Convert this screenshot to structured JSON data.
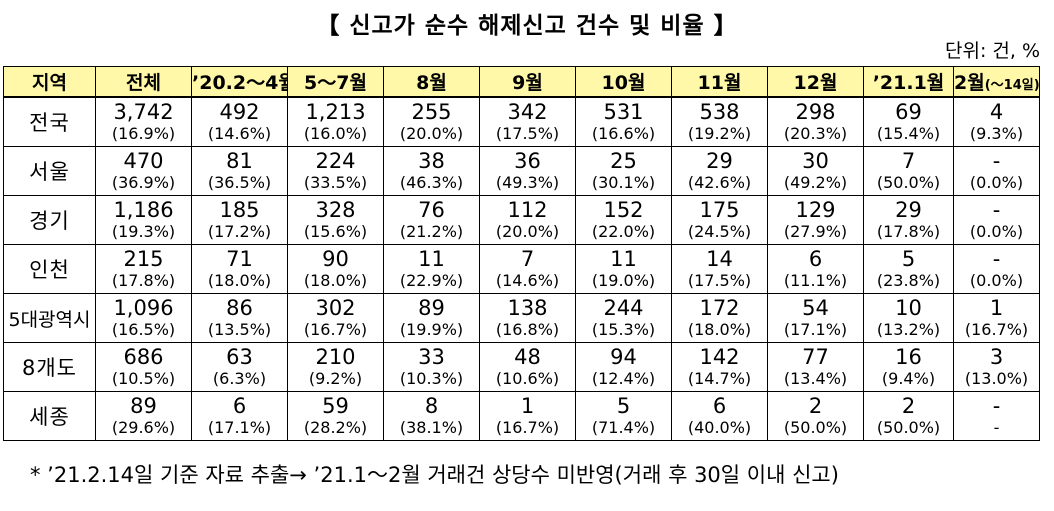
{
  "title": "【 신고가 순수 해제신고 건수 및 비율 】",
  "unit_label": "단위: 건, %",
  "columns": {
    "region": "지역",
    "total": "전체",
    "c1": "’20.2～4월",
    "c2": "5～7월",
    "c3": "8월",
    "c4": "9월",
    "c5": "10월",
    "c6": "11월",
    "c7": "12월",
    "c8": "’21.1월",
    "c9_main": "2월",
    "c9_note": "(～14일)"
  },
  "rows": [
    {
      "region": "전국",
      "cells": [
        {
          "count": "3,742",
          "pct": "(16.9%)"
        },
        {
          "count": "492",
          "pct": "(14.6%)"
        },
        {
          "count": "1,213",
          "pct": "(16.0%)"
        },
        {
          "count": "255",
          "pct": "(20.0%)"
        },
        {
          "count": "342",
          "pct": "(17.5%)"
        },
        {
          "count": "531",
          "pct": "(16.6%)"
        },
        {
          "count": "538",
          "pct": "(19.2%)"
        },
        {
          "count": "298",
          "pct": "(20.3%)"
        },
        {
          "count": "69",
          "pct": "(15.4%)"
        },
        {
          "count": "4",
          "pct": "(9.3%)"
        }
      ]
    },
    {
      "region": "서울",
      "cells": [
        {
          "count": "470",
          "pct": "(36.9%)"
        },
        {
          "count": "81",
          "pct": "(36.5%)"
        },
        {
          "count": "224",
          "pct": "(33.5%)"
        },
        {
          "count": "38",
          "pct": "(46.3%)"
        },
        {
          "count": "36",
          "pct": "(49.3%)"
        },
        {
          "count": "25",
          "pct": "(30.1%)"
        },
        {
          "count": "29",
          "pct": "(42.6%)"
        },
        {
          "count": "30",
          "pct": "(49.2%)"
        },
        {
          "count": "7",
          "pct": "(50.0%)"
        },
        {
          "count": "-",
          "pct": "(0.0%)"
        }
      ]
    },
    {
      "region": "경기",
      "cells": [
        {
          "count": "1,186",
          "pct": "(19.3%)"
        },
        {
          "count": "185",
          "pct": "(17.2%)"
        },
        {
          "count": "328",
          "pct": "(15.6%)"
        },
        {
          "count": "76",
          "pct": "(21.2%)"
        },
        {
          "count": "112",
          "pct": "(20.0%)"
        },
        {
          "count": "152",
          "pct": "(22.0%)"
        },
        {
          "count": "175",
          "pct": "(24.5%)"
        },
        {
          "count": "129",
          "pct": "(27.9%)"
        },
        {
          "count": "29",
          "pct": "(17.8%)"
        },
        {
          "count": "-",
          "pct": "(0.0%)"
        }
      ]
    },
    {
      "region": "인천",
      "cells": [
        {
          "count": "215",
          "pct": "(17.8%)"
        },
        {
          "count": "71",
          "pct": "(18.0%)"
        },
        {
          "count": "90",
          "pct": "(18.0%)"
        },
        {
          "count": "11",
          "pct": "(22.9%)"
        },
        {
          "count": "7",
          "pct": "(14.6%)"
        },
        {
          "count": "11",
          "pct": "(19.0%)"
        },
        {
          "count": "14",
          "pct": "(17.5%)"
        },
        {
          "count": "6",
          "pct": "(11.1%)"
        },
        {
          "count": "5",
          "pct": "(23.8%)"
        },
        {
          "count": "-",
          "pct": "(0.0%)"
        }
      ]
    },
    {
      "region": "5대광역시",
      "cells": [
        {
          "count": "1,096",
          "pct": "(16.5%)"
        },
        {
          "count": "86",
          "pct": "(13.5%)"
        },
        {
          "count": "302",
          "pct": "(16.7%)"
        },
        {
          "count": "89",
          "pct": "(19.9%)"
        },
        {
          "count": "138",
          "pct": "(16.8%)"
        },
        {
          "count": "244",
          "pct": "(15.3%)"
        },
        {
          "count": "172",
          "pct": "(18.0%)"
        },
        {
          "count": "54",
          "pct": "(17.1%)"
        },
        {
          "count": "10",
          "pct": "(13.2%)"
        },
        {
          "count": "1",
          "pct": "(16.7%)"
        }
      ]
    },
    {
      "region": "8개도",
      "cells": [
        {
          "count": "686",
          "pct": "(10.5%)"
        },
        {
          "count": "63",
          "pct": "(6.3%)"
        },
        {
          "count": "210",
          "pct": "(9.2%)"
        },
        {
          "count": "33",
          "pct": "(10.3%)"
        },
        {
          "count": "48",
          "pct": "(10.6%)"
        },
        {
          "count": "94",
          "pct": "(12.4%)"
        },
        {
          "count": "142",
          "pct": "(14.7%)"
        },
        {
          "count": "77",
          "pct": "(13.4%)"
        },
        {
          "count": "16",
          "pct": "(9.4%)"
        },
        {
          "count": "3",
          "pct": "(13.0%)"
        }
      ]
    },
    {
      "region": "세종",
      "cells": [
        {
          "count": "89",
          "pct": "(29.6%)"
        },
        {
          "count": "6",
          "pct": "(17.1%)"
        },
        {
          "count": "59",
          "pct": "(28.2%)"
        },
        {
          "count": "8",
          "pct": "(38.1%)"
        },
        {
          "count": "1",
          "pct": "(16.7%)"
        },
        {
          "count": "5",
          "pct": "(71.4%)"
        },
        {
          "count": "6",
          "pct": "(40.0%)"
        },
        {
          "count": "2",
          "pct": "(50.0%)"
        },
        {
          "count": "2",
          "pct": "(50.0%)"
        },
        {
          "count": "-",
          "pct": "-"
        }
      ]
    }
  ],
  "footnote": "*  ’21.2.14일 기준 자료 추출→ ’21.1～2월 거래건 상당수 미반영(거래 후 30일 이내 신고)",
  "colors": {
    "header_bg": "#fff8a8",
    "border": "#000000"
  }
}
